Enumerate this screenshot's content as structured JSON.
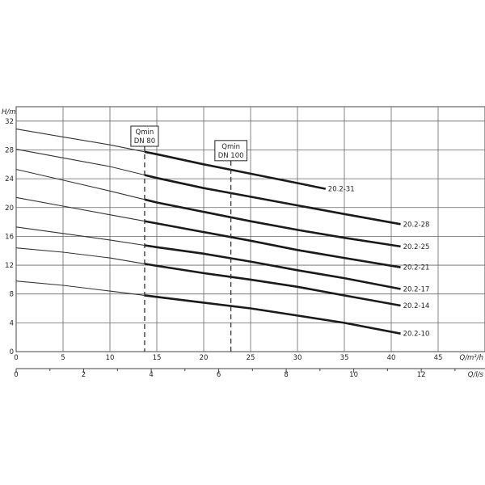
{
  "chart_data": {
    "type": "line",
    "ylabel": "H/m",
    "xlabel": "Q/m³/h",
    "x2label": "Q/l/s",
    "xlim": [
      0,
      50
    ],
    "ylim": [
      0,
      34
    ],
    "x_ticks": [
      0,
      5,
      10,
      15,
      20,
      25,
      30,
      35,
      40,
      45
    ],
    "y_ticks": [
      0,
      4,
      8,
      12,
      16,
      20,
      24,
      28,
      32
    ],
    "x2_ticks": [
      0,
      2,
      4,
      6,
      8,
      10,
      12
    ],
    "grid": true,
    "series": [
      {
        "name": "20.2-31",
        "x": [
          0,
          5,
          10,
          15,
          20,
          25,
          30,
          33
        ],
        "y": [
          30.9,
          29.8,
          28.7,
          27.4,
          26.0,
          24.7,
          23.4,
          22.6
        ],
        "thick_from": 13.7
      },
      {
        "name": "20.2-28",
        "x": [
          0,
          5,
          10,
          15,
          20,
          25,
          30,
          35,
          41
        ],
        "y": [
          28.1,
          26.9,
          25.7,
          24.1,
          22.7,
          21.5,
          20.3,
          19.1,
          17.7
        ],
        "thick_from": 13.7
      },
      {
        "name": "20.2-25",
        "x": [
          0,
          5,
          10,
          15,
          20,
          25,
          30,
          35,
          41
        ],
        "y": [
          25.3,
          23.8,
          22.3,
          20.7,
          19.4,
          18.1,
          16.9,
          15.8,
          14.6
        ],
        "thick_from": 13.7
      },
      {
        "name": "20.2-21",
        "x": [
          0,
          5,
          10,
          15,
          20,
          25,
          30,
          35,
          41
        ],
        "y": [
          21.4,
          20.2,
          19.0,
          17.8,
          16.6,
          15.4,
          14.1,
          13.0,
          11.7
        ],
        "thick_from": 13.7
      },
      {
        "name": "20.2-17",
        "x": [
          0,
          5,
          10,
          15,
          20,
          25,
          30,
          35,
          41
        ],
        "y": [
          17.3,
          16.4,
          15.5,
          14.5,
          13.6,
          12.5,
          11.3,
          10.2,
          8.7
        ],
        "thick_from": 13.7
      },
      {
        "name": "20.2-14",
        "x": [
          0,
          5,
          10,
          15,
          20,
          25,
          30,
          35,
          41
        ],
        "y": [
          14.4,
          13.8,
          13.0,
          11.9,
          10.9,
          10.0,
          9.0,
          7.8,
          6.4
        ],
        "thick_from": 13.7
      },
      {
        "name": "20.2-10",
        "x": [
          0,
          5,
          10,
          15,
          20,
          25,
          30,
          35,
          41
        ],
        "y": [
          9.8,
          9.2,
          8.4,
          7.6,
          6.8,
          6.0,
          5.0,
          4.0,
          2.5
        ],
        "thick_from": 13.7
      }
    ],
    "annotations": [
      {
        "label_lines": [
          "Qmin",
          "DN 80"
        ],
        "x": 13.7,
        "y_top": 28.5
      },
      {
        "label_lines": [
          "Qmin",
          "DN 100"
        ],
        "x": 22.9,
        "y_top": 26.5
      }
    ]
  }
}
